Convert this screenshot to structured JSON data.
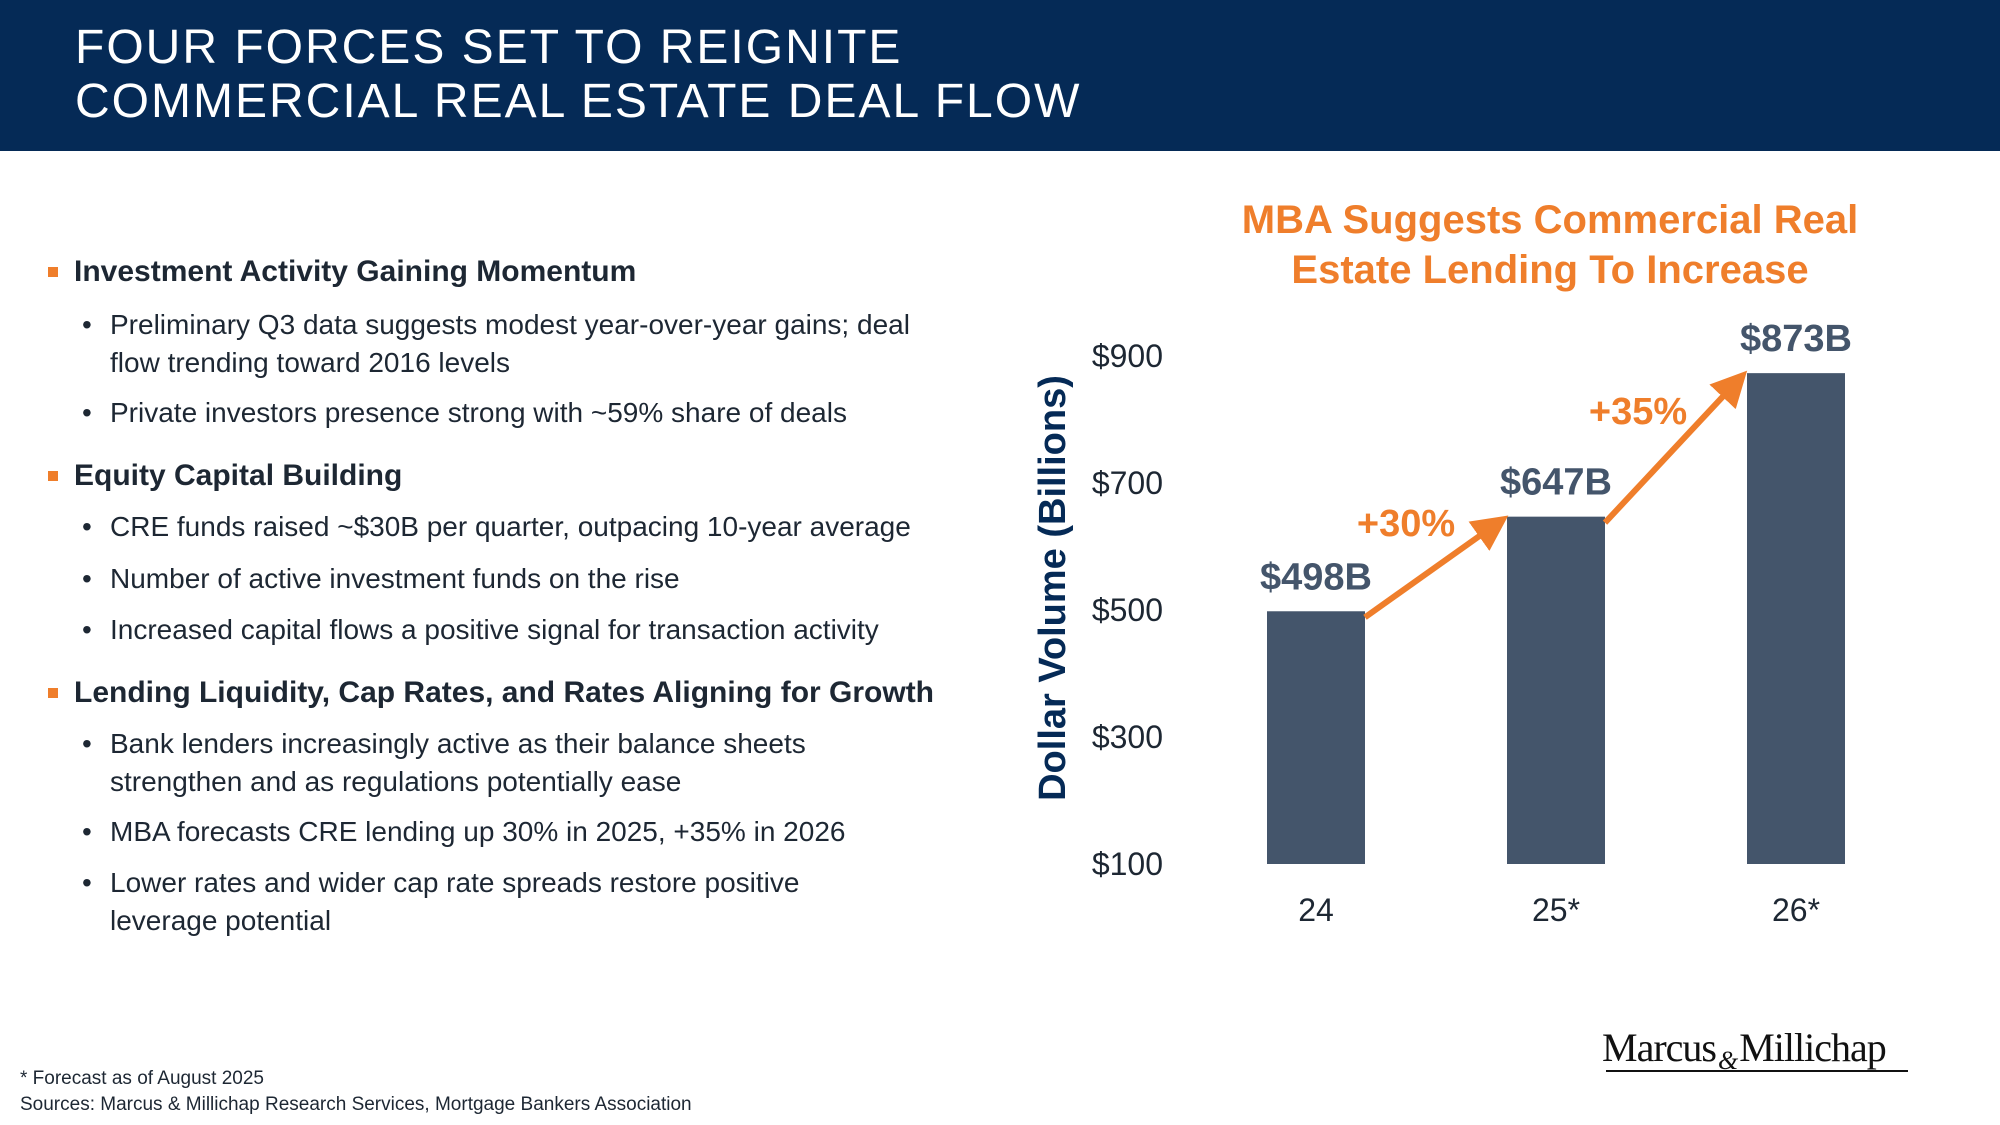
{
  "header": {
    "title_line1": "FOUR FORCES SET TO REIGNITE",
    "title_line2": "COMMERCIAL REAL ESTATE DEAL FLOW",
    "background_color": "#052a56"
  },
  "sections": [
    {
      "heading": "Investment Activity Gaining Momentum",
      "items": [
        [
          "Preliminary Q3 data suggests modest year-over-year gains; deal",
          "flow trending toward 2016 levels"
        ],
        [
          "Private investors presence strong with ~59% share of deals"
        ]
      ]
    },
    {
      "heading": "Equity Capital Building",
      "items": [
        [
          "CRE funds raised ~$30B per quarter, outpacing 10-year average"
        ],
        [
          "Number of active investment funds on the rise"
        ],
        [
          "Increased capital flows a positive signal for transaction activity"
        ]
      ]
    },
    {
      "heading": "Lending Liquidity, Cap Rates, and Rates Aligning for Growth",
      "items": [
        [
          "Bank lenders increasingly active as their balance sheets",
          "strengthen and as regulations potentially ease"
        ],
        [
          "MBA forecasts CRE lending up 30% in 2025, +35% in 2026"
        ],
        [
          "Lower rates and wider cap rate spreads restore positive",
          "leverage potential"
        ]
      ]
    }
  ],
  "footnotes": {
    "forecast": "* Forecast as of August 2025",
    "sources": "Sources: Marcus & Millichap Research Services, Mortgage Bankers Association"
  },
  "logo": {
    "part1": "Marcus",
    "amp": "&",
    "part2": "Millichap"
  },
  "colors": {
    "accent": "#ef7e2b",
    "bar": "#44556b",
    "text": "#1d2733",
    "axis_title": "#052a56"
  },
  "chart_data": {
    "type": "bar",
    "title_line1": "MBA Suggests Commercial Real",
    "title_line2": "Estate Lending To Increase",
    "ylabel": "Dollar Volume (Billions)",
    "categories": [
      "24",
      "25*",
      "26*"
    ],
    "values": [
      498,
      647,
      873
    ],
    "data_labels": [
      "$498B",
      "$647B",
      "$873B"
    ],
    "ylim": [
      100,
      900
    ],
    "yticks": [
      100,
      300,
      500,
      700,
      900
    ],
    "ytick_labels": [
      "$100",
      "$300",
      "$500",
      "$700",
      "$900"
    ],
    "growth_labels": [
      "+30%",
      "+35%"
    ],
    "grid": false
  }
}
